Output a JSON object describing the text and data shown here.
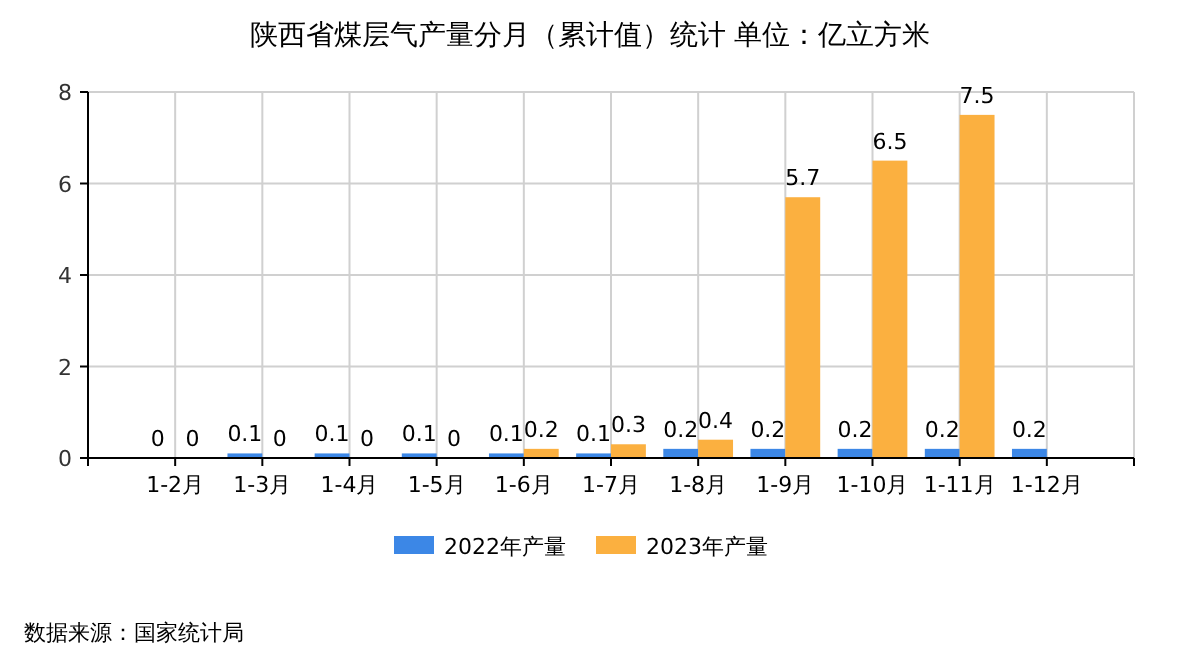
{
  "chart_data": {
    "type": "bar",
    "title": "陕西省煤层气产量分月（累计值）统计 单位：亿立方米",
    "categories": [
      "1-2月",
      "1-3月",
      "1-4月",
      "1-5月",
      "1-6月",
      "1-7月",
      "1-8月",
      "1-9月",
      "1-10月",
      "1-11月",
      "1-12月"
    ],
    "series": [
      {
        "name": "2022年产量",
        "color": "#3c87e6",
        "values": [
          0,
          0.1,
          0.1,
          0.1,
          0.1,
          0.1,
          0.2,
          0.2,
          0.2,
          0.2,
          0.2
        ]
      },
      {
        "name": "2023年产量",
        "color": "#fbb040",
        "values": [
          0,
          0,
          0,
          0,
          0.2,
          0.3,
          0.4,
          5.7,
          6.5,
          7.5,
          null
        ]
      }
    ],
    "ylim": [
      0,
      8
    ],
    "yticks": [
      0,
      2,
      4,
      6,
      8
    ],
    "grid": true,
    "legend": "bottom",
    "data_labels": true,
    "annotations": [
      "数据来源：国家统计局"
    ]
  }
}
